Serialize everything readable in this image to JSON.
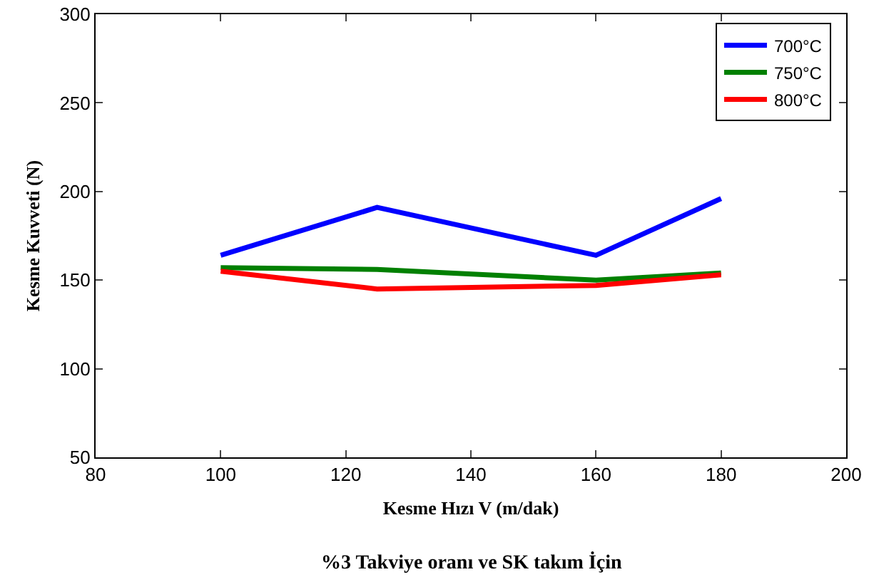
{
  "chart_data": {
    "type": "line",
    "xlabel": "Kesme Hızı V (m/dak)",
    "ylabel": "Kesme Kuvveti (N)",
    "annotations": [
      "%3 Takviye oranı ve SK takım İçin"
    ],
    "x": [
      100,
      125,
      160,
      180
    ],
    "series": [
      {
        "name": "700°C",
        "color": "#0000ff",
        "values": [
          164,
          191,
          164,
          196
        ]
      },
      {
        "name": "750°C",
        "color": "#008000",
        "values": [
          157,
          156,
          150,
          154
        ]
      },
      {
        "name": "800°C",
        "color": "#ff0000",
        "values": [
          155,
          145,
          147,
          153
        ]
      }
    ],
    "xlim": [
      80,
      200
    ],
    "xticks": [
      80,
      100,
      120,
      140,
      160,
      180,
      200
    ],
    "ylim": [
      50,
      300
    ],
    "yticks": [
      50,
      100,
      150,
      200,
      250,
      300
    ],
    "grid": false,
    "legend": "top right",
    "marker": "none",
    "line_style": "solid"
  }
}
